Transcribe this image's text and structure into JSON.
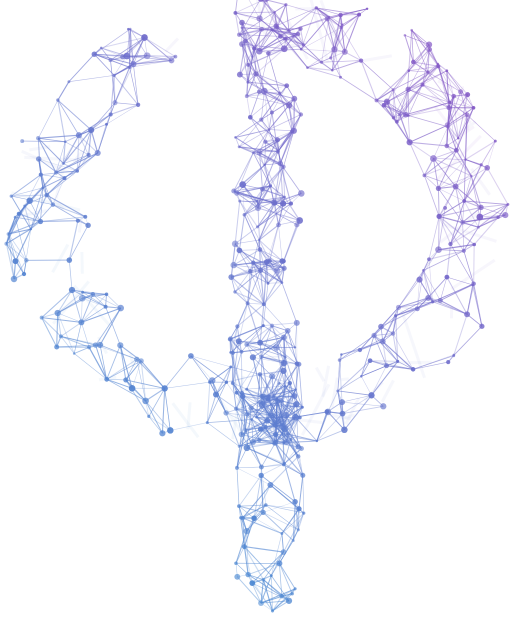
{
  "logo": {
    "icon": "phi-network-logo-icon",
    "colors": {
      "blue": "#4a8fd4",
      "purple": "#8d52c4",
      "background": "#ffffff"
    },
    "seed": 7
  }
}
